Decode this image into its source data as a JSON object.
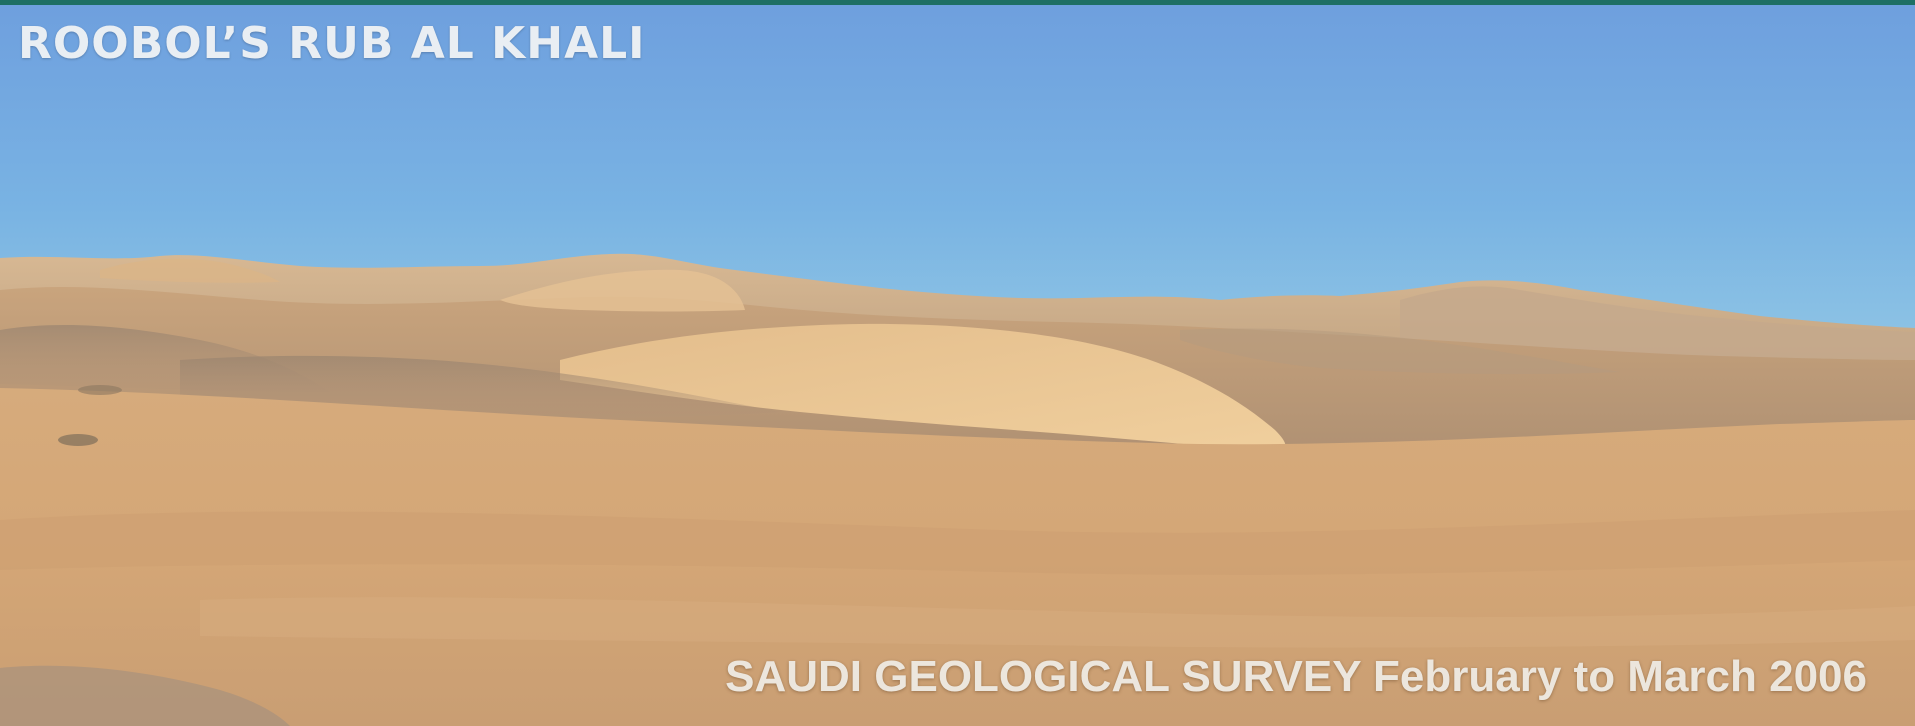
{
  "slide": {
    "title": "ROOBOL’S RUB AL KHALI",
    "caption": "SAUDI GEOLOGICAL SURVEY February to March 2006"
  },
  "colors": {
    "sky_top": "#6e9fde",
    "sky_horizon": "#8cc3e4",
    "sand_light": "#e6bd88",
    "sand_mid": "#d2a878",
    "sand_dark": "#a98a6c",
    "accent_strip": "#1e6f63",
    "text": "#e9eef3"
  },
  "photo": {
    "subject": "sand-dunes-desert",
    "icon": "desert-landscape-photo"
  }
}
